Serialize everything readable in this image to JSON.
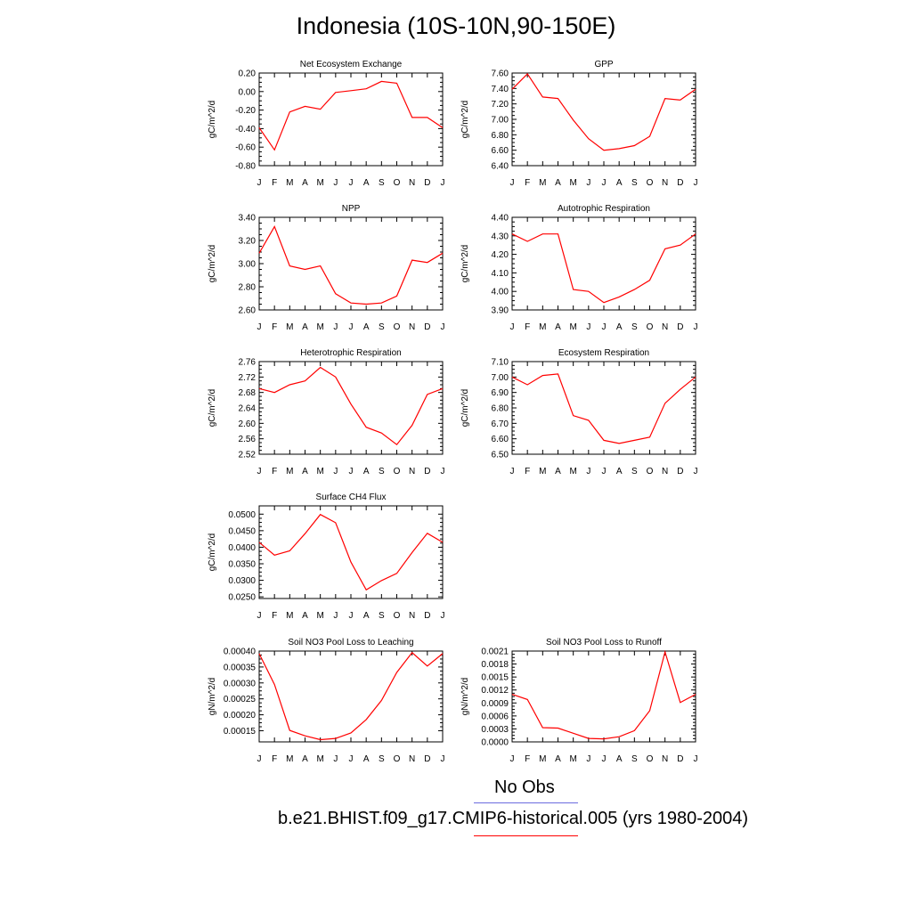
{
  "title": "Indonesia (10S-10N,90-150E)",
  "month_labels": [
    "J",
    "F",
    "M",
    "A",
    "M",
    "J",
    "J",
    "A",
    "S",
    "O",
    "N",
    "D",
    "J"
  ],
  "legend": {
    "obs_label": "No Obs",
    "obs_color": "#6b6bdf",
    "model_label": "b.e21.BHIST.f09_g17.CMIP6-historical.005 (yrs 1980-2004)",
    "model_color": "#ff0000"
  },
  "line_color": "#ff0000",
  "chart_data": [
    {
      "type": "line",
      "title": "Net Ecosystem Exchange",
      "ylabel": "gC/m^2/d",
      "ylim": [
        -0.8,
        0.2
      ],
      "yticks": [
        0.2,
        0.0,
        -0.2,
        -0.4,
        -0.6,
        -0.8
      ],
      "ytick_labels": [
        "0.20",
        "0.00",
        "-0.20",
        "-0.40",
        "-0.60",
        "-0.80"
      ],
      "values": [
        -0.39,
        -0.63,
        -0.22,
        -0.16,
        -0.19,
        -0.01,
        0.01,
        0.03,
        0.11,
        0.09,
        -0.28,
        -0.28,
        -0.39
      ]
    },
    {
      "type": "line",
      "title": "GPP",
      "ylabel": "gC/m^2/d",
      "ylim": [
        6.4,
        7.6
      ],
      "yticks": [
        7.6,
        7.4,
        7.2,
        7.0,
        6.8,
        6.6,
        6.4
      ],
      "ytick_labels": [
        "7.60",
        "7.40",
        "7.20",
        "7.00",
        "6.80",
        "6.60",
        "6.40"
      ],
      "values": [
        7.39,
        7.59,
        7.29,
        7.27,
        6.99,
        6.75,
        6.6,
        6.62,
        6.66,
        6.78,
        7.27,
        7.25,
        7.39
      ]
    },
    {
      "type": "line",
      "title": "NPP",
      "ylabel": "gC/m^2/d",
      "ylim": [
        2.6,
        3.4
      ],
      "yticks": [
        3.4,
        3.2,
        3.0,
        2.8,
        2.6
      ],
      "ytick_labels": [
        "3.40",
        "3.20",
        "3.00",
        "2.80",
        "2.60"
      ],
      "values": [
        3.09,
        3.32,
        2.98,
        2.95,
        2.98,
        2.74,
        2.66,
        2.65,
        2.66,
        2.72,
        3.03,
        3.01,
        3.09
      ]
    },
    {
      "type": "line",
      "title": "Autotrophic Respiration",
      "ylabel": "gC/m^2/d",
      "ylim": [
        3.9,
        4.4
      ],
      "yticks": [
        4.4,
        4.3,
        4.2,
        4.1,
        4.0,
        3.9
      ],
      "ytick_labels": [
        "4.40",
        "4.30",
        "4.20",
        "4.10",
        "4.00",
        "3.90"
      ],
      "values": [
        4.31,
        4.27,
        4.31,
        4.31,
        4.01,
        4.0,
        3.94,
        3.97,
        4.01,
        4.06,
        4.23,
        4.25,
        4.31
      ]
    },
    {
      "type": "line",
      "title": "Heterotrophic Respiration",
      "ylabel": "gC/m^2/d",
      "ylim": [
        2.52,
        2.76
      ],
      "yticks": [
        2.76,
        2.72,
        2.68,
        2.64,
        2.6,
        2.56,
        2.52
      ],
      "ytick_labels": [
        "2.76",
        "2.72",
        "2.68",
        "2.64",
        "2.60",
        "2.56",
        "2.52"
      ],
      "values": [
        2.69,
        2.68,
        2.7,
        2.71,
        2.745,
        2.72,
        2.65,
        2.59,
        2.575,
        2.545,
        2.595,
        2.675,
        2.69
      ]
    },
    {
      "type": "line",
      "title": "Ecosystem Respiration",
      "ylabel": "gC/m^2/d",
      "ylim": [
        6.5,
        7.1
      ],
      "yticks": [
        7.1,
        7.0,
        6.9,
        6.8,
        6.7,
        6.6,
        6.5
      ],
      "ytick_labels": [
        "7.10",
        "7.00",
        "6.90",
        "6.80",
        "6.70",
        "6.60",
        "6.50"
      ],
      "values": [
        7.0,
        6.95,
        7.01,
        7.02,
        6.75,
        6.72,
        6.59,
        6.57,
        6.59,
        6.61,
        6.83,
        6.92,
        7.0
      ]
    },
    {
      "type": "line",
      "title": "Surface CH4 Flux",
      "ylabel": "gC/m^2/d",
      "ylim": [
        0.0245,
        0.0525
      ],
      "yticks": [
        0.05,
        0.045,
        0.04,
        0.035,
        0.03,
        0.025
      ],
      "ytick_labels": [
        "0.0500",
        "0.0450",
        "0.0400",
        "0.0350",
        "0.0300",
        "0.0250"
      ],
      "values": [
        0.0415,
        0.0376,
        0.0389,
        0.0441,
        0.0499,
        0.0474,
        0.0355,
        0.0271,
        0.0299,
        0.0321,
        0.0384,
        0.0442,
        0.0415
      ]
    },
    {
      "type": "line",
      "title": "Soil NO3 Pool Loss to Leaching",
      "ylabel": "gN/m^2/d",
      "ylim": [
        0.000115,
        0.0004
      ],
      "yticks": [
        0.0004,
        0.00035,
        0.0003,
        0.00025,
        0.0002,
        0.00015
      ],
      "ytick_labels": [
        "0.00040",
        "0.00035",
        "0.00030",
        "0.00025",
        "0.00020",
        "0.00015"
      ],
      "values": [
        0.000392,
        0.000295,
        0.000151,
        0.000134,
        0.000122,
        0.000126,
        0.000143,
        0.000185,
        0.000245,
        0.000333,
        0.000395,
        0.000353,
        0.000392
      ]
    },
    {
      "type": "line",
      "title": "Soil NO3 Pool Loss to Runoff",
      "ylabel": "gN/m^2/d",
      "ylim": [
        0.0,
        0.0021
      ],
      "yticks": [
        0.0021,
        0.0018,
        0.0015,
        0.0012,
        0.0009,
        0.0006,
        0.0003,
        0.0
      ],
      "ytick_labels": [
        "0.0021",
        "0.0018",
        "0.0015",
        "0.0012",
        "0.0009",
        "0.0006",
        "0.0003",
        "0.0000"
      ],
      "values": [
        0.0011,
        0.00098,
        0.00033,
        0.00032,
        0.0002,
        8e-05,
        7e-05,
        0.00012,
        0.00026,
        0.00072,
        0.00208,
        0.00091,
        0.0011
      ]
    }
  ]
}
